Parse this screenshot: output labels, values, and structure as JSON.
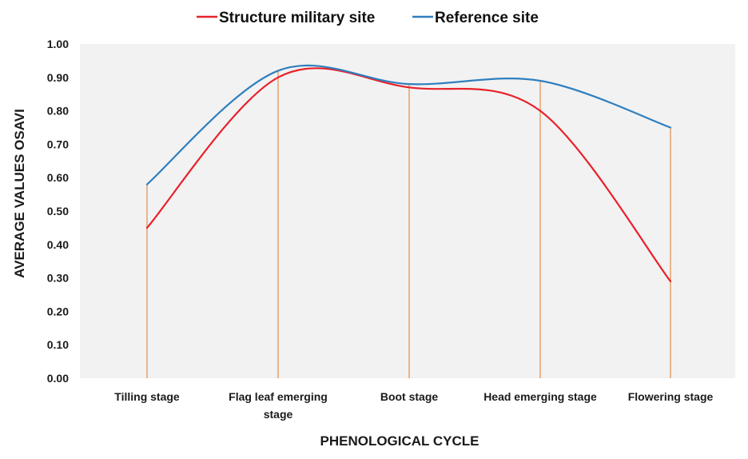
{
  "chart_data": {
    "type": "line",
    "categories": [
      [
        "Tilling stage"
      ],
      [
        "Flag leaf emerging",
        "stage"
      ],
      [
        "Boot  stage"
      ],
      [
        "Head emerging stage"
      ],
      [
        "Flowering stage"
      ]
    ],
    "series": [
      {
        "name": "Structure military site",
        "color": "#e8212b",
        "values": [
          0.45,
          0.9,
          0.87,
          0.8,
          0.29
        ]
      },
      {
        "name": "Reference site",
        "color": "#2f7fbf",
        "values": [
          0.58,
          0.92,
          0.88,
          0.89,
          0.75
        ]
      }
    ],
    "xlabel": "PHENOLOGICAL CYCLE",
    "ylabel": "AVERAGE VALUES OSAVI",
    "ylim": [
      0,
      1
    ],
    "yticks": [
      "0.00",
      "0.10",
      "0.20",
      "0.30",
      "0.40",
      "0.50",
      "0.60",
      "0.70",
      "0.80",
      "0.90",
      "1.00"
    ],
    "legend_position": "top",
    "drop_line_color": "#e9b58c",
    "plot_background": "#f2f2f2"
  }
}
